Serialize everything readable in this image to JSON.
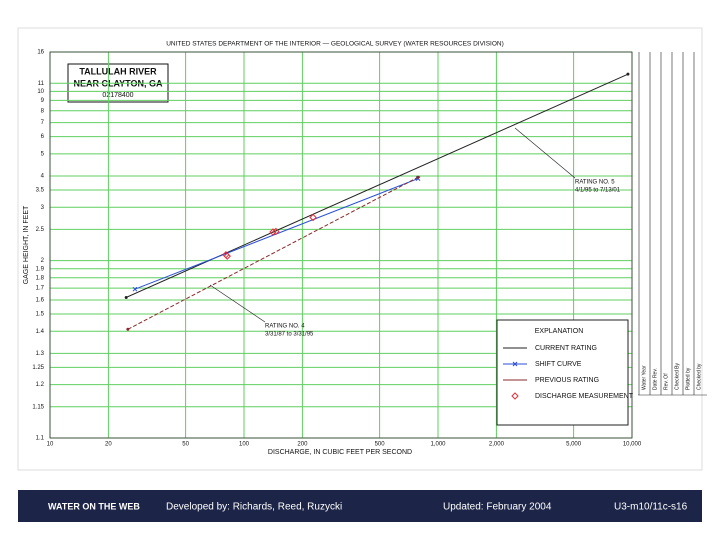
{
  "chart_data": {
    "type": "line",
    "title": "UNITED STATES DEPARTMENT OF THE INTERIOR — GEOLOGICAL SURVEY (WATER RESOURCES DIVISION)",
    "site": [
      "TALLULAH RIVER",
      "NEAR CLAYTON, GA",
      "02178400"
    ],
    "xlabel": "DISCHARGE, IN CUBIC FEET PER SECOND",
    "ylabel": "GAGE HEIGHT, IN FEET",
    "xlog": true,
    "ylog": true,
    "y_offset": 1,
    "grid": true,
    "grid_color": "#5fcf5f",
    "xlim": [
      10,
      10000
    ],
    "xticks": [
      10,
      20,
      50,
      100,
      200,
      500,
      {
        "value": 1000,
        "label": "1,000"
      },
      {
        "value": 2000,
        "label": "2,000"
      },
      {
        "value": 5000,
        "label": "5,000"
      },
      {
        "value": 10000,
        "label": "10,000"
      }
    ],
    "ylim": [
      1.1,
      16
    ],
    "yticks": [
      1.1,
      1.15,
      1.2,
      1.25,
      1.3,
      1.4,
      1.5,
      1.6,
      1.7,
      1.8,
      1.9,
      2,
      2.5,
      3,
      3.5,
      4,
      5,
      6,
      7,
      8,
      9,
      10,
      11,
      16
    ],
    "legend_title": "EXPLANATION",
    "legend": "bottom-right",
    "series": [
      {
        "name": "CURRENT RATING",
        "color": "#222222",
        "marker": "dot",
        "x": [
          24.7,
          9530
        ],
        "values": [
          1.62,
          12.25
        ]
      },
      {
        "name": "SHIFT CURVE",
        "color": "#2a4fd8",
        "marker": "x",
        "x": [
          27.4,
          789
        ],
        "values": [
          1.69,
          3.9
        ]
      },
      {
        "name": "PREVIOUS RATING",
        "color": "#8a2a2a",
        "marker": "dot",
        "x": [
          25.2,
          789
        ],
        "values": [
          1.41,
          3.95
        ]
      },
      {
        "name": "DISCHARGE MEASUREMENT",
        "color": "#e0303a",
        "marker": "diamond",
        "x": [
          80.7,
          146,
          227,
          141,
          82
        ],
        "values": [
          2.08,
          2.46,
          2.75,
          2.45,
          2.06
        ]
      }
    ],
    "annotations": [
      "RATING NO. 5",
      "4/1/95 to 7/13/01",
      "RATING NO. 4",
      "3/31/87 to 3/31/95"
    ],
    "side_columns": [
      "Water Year",
      "Date Rev.",
      "Rev. Of",
      "Checked By",
      "Plotted by",
      "Checked by"
    ]
  },
  "footer": {
    "logo": "WATER ON THE WEB",
    "credit": "Developed by: Richards, Reed, Ruzycki",
    "updated": "Updated: February 2004",
    "code": "U3-m10/11c-s16"
  }
}
